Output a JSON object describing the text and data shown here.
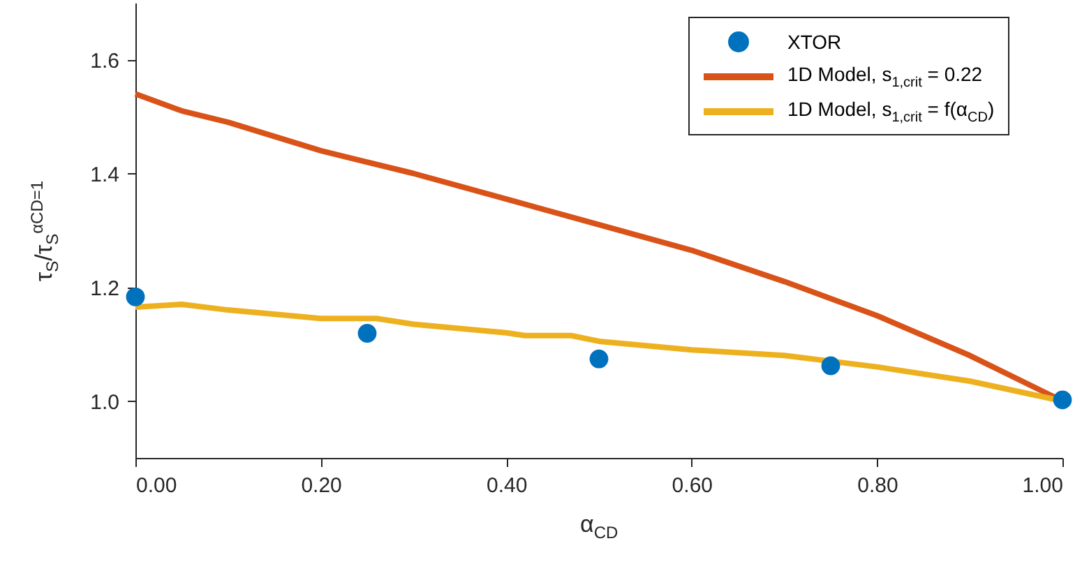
{
  "chart_data": {
    "type": "line",
    "xlabel": "α$_{CD}$",
    "ylabel": "τ$_{S}$/τ$_{S}$$^{αCD=1}$",
    "xlim": [
      0,
      1
    ],
    "ylim": [
      0.9,
      1.7
    ],
    "xticks": [
      {
        "value": 0,
        "label": "0.00"
      },
      {
        "value": 0.2,
        "label": "0.20"
      },
      {
        "value": 0.4,
        "label": "0.40"
      },
      {
        "value": 0.6,
        "label": "0.60"
      },
      {
        "value": 0.8,
        "label": "0.80"
      },
      {
        "value": 1,
        "label": "1.00"
      }
    ],
    "yticks": [
      {
        "value": 1,
        "label": "1.0"
      },
      {
        "value": 1.2,
        "label": "1.2"
      },
      {
        "value": 1.4,
        "label": "1.4"
      },
      {
        "value": 1.6,
        "label": "1.6"
      }
    ],
    "grid": false,
    "legend": "top right",
    "series": [
      {
        "name": "XTOR",
        "type": "scatter",
        "marker": "circle",
        "color": "#0072bd",
        "x": [
          0,
          0.25,
          0.5,
          0.75,
          1
        ],
        "values": [
          1.183,
          1.119,
          1.074,
          1.062,
          1.002
        ]
      },
      {
        "name": "1D Model, s$_{1,crit}$ = 0.22",
        "type": "line",
        "color": "#d95319",
        "x": [
          0,
          0.05,
          0.1,
          0.2,
          0.3,
          0.4,
          0.5,
          0.6,
          0.7,
          0.8,
          0.9,
          1
        ],
        "values": [
          1.54,
          1.51,
          1.49,
          1.44,
          1.4,
          1.355,
          1.31,
          1.265,
          1.21,
          1.15,
          1.08,
          1.0
        ]
      },
      {
        "name": "1D Model, s$_{1,crit}$ = f(α$_{CD}$)",
        "type": "line",
        "color": "#edb120",
        "x": [
          0,
          0.05,
          0.1,
          0.2,
          0.26,
          0.3,
          0.4,
          0.42,
          0.47,
          0.5,
          0.6,
          0.7,
          0.8,
          0.9,
          1
        ],
        "values": [
          1.165,
          1.17,
          1.16,
          1.145,
          1.145,
          1.135,
          1.12,
          1.115,
          1.115,
          1.105,
          1.09,
          1.08,
          1.06,
          1.035,
          1.0
        ]
      }
    ]
  }
}
